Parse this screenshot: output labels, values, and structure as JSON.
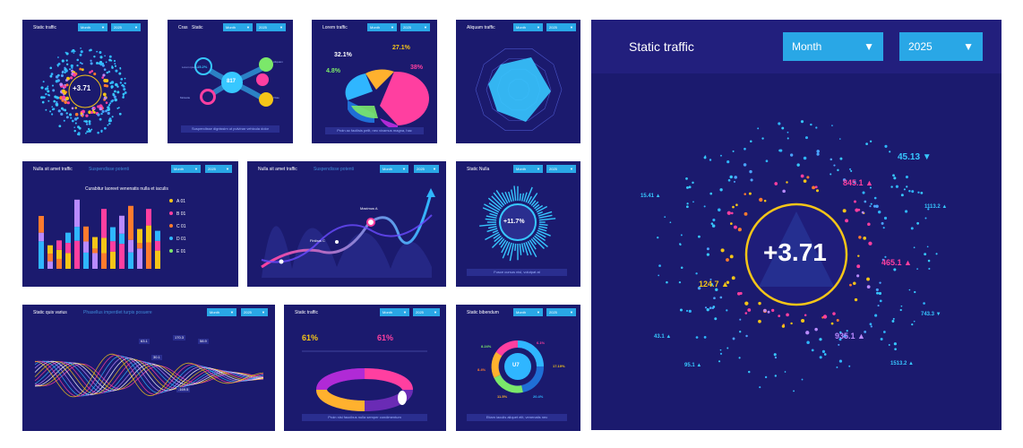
{
  "panels": {
    "p1": {
      "title": "Static traffic",
      "dd1": "Month",
      "dd2": "2025",
      "value": "+3.71"
    },
    "p2": {
      "title": "Cras",
      "subtitle": "Static",
      "dd1": "Month",
      "dd2": "2025",
      "center": "817",
      "node_pct": "15.2%",
      "note": "Suspendisse dignissim ut pulvinar vehicula dolor"
    },
    "p3": {
      "title": "Lorem traffic",
      "dd1": "Month",
      "dd2": "2025",
      "v1": "32.1%",
      "v2": "27.1%",
      "v3": "4.8%",
      "v4": "38%",
      "note": "Proin ac facilisis pellt, nec vivamus magna, hac"
    },
    "p4": {
      "title": "Aliquam traffic",
      "dd1": "Month",
      "dd2": "2025"
    },
    "p5": {
      "title": "Nulla sit amet traffic",
      "subtitle": "Suspendisse potenti",
      "dd1": "Month",
      "dd2": "2025",
      "chart_title": "Curabitur laoreet venenatis nulla et iaculis",
      "legend": [
        {
          "label": "A 01",
          "color": "#f5c518"
        },
        {
          "label": "B 01",
          "color": "#ff3fa0"
        },
        {
          "label": "C 01",
          "color": "#ff7b2e"
        },
        {
          "label": "D 01",
          "color": "#2fb6ff"
        },
        {
          "label": "E 01",
          "color": "#7be86a"
        }
      ]
    },
    "p6": {
      "title": "Nulla sit amet traffic",
      "subtitle": "Suspendisse potenti",
      "dd1": "Month",
      "dd2": "2025",
      "max_label": "Maximus A",
      "min_label": "Finibus C"
    },
    "p7": {
      "title": "Static Nulla",
      "dd1": "Month",
      "dd2": "2025",
      "value": "+11.7%",
      "note": "Fusce cursus nisl, volutpat at"
    },
    "p8": {
      "title": "Static quis varius",
      "subtitle": "Phasellus imperdiet turpis posuere",
      "dd1": "Month",
      "dd2": "2025",
      "tags": [
        "170.3",
        "63.1",
        "58.9",
        "30.1",
        "-169.5"
      ]
    },
    "p9": {
      "title": "Static traffic",
      "dd1": "Month",
      "dd2": "2025",
      "v1": "61%",
      "v2": "61%",
      "note": "Proin nisi faucibus nulla semper condimentum"
    },
    "p10": {
      "title": "Static bibendum",
      "dd1": "Month",
      "dd2": "2025",
      "center": "U7",
      "labels": [
        "8.24%",
        "6.1%",
        "17.19%",
        "8.4%",
        "11.5%",
        "20.4%"
      ],
      "note": "Etiam iaculis aliquet elit, venenatis nec"
    }
  },
  "main": {
    "title": "Static traffic",
    "dropdown_month": "Month",
    "dropdown_year": "2025",
    "value": "+3.71",
    "labels": [
      {
        "text": "45.13",
        "color": "#37c7ff",
        "arrow": "▼"
      },
      {
        "text": "15.41",
        "color": "#37c7ff",
        "arrow": "▲"
      },
      {
        "text": "845.1",
        "color": "#ff3fa0",
        "arrow": "▲"
      },
      {
        "text": "1113.2",
        "color": "#37c7ff",
        "arrow": "▲"
      },
      {
        "text": "465.1",
        "color": "#ff3fa0",
        "arrow": "▲"
      },
      {
        "text": "124.7",
        "color": "#f5c518",
        "arrow": "▲"
      },
      {
        "text": "743.3",
        "color": "#37c7ff",
        "arrow": "▼"
      },
      {
        "text": "935.1",
        "color": "#b98aff",
        "arrow": "▲"
      },
      {
        "text": "43.1",
        "color": "#37c7ff",
        "arrow": "▲"
      },
      {
        "text": "95.1",
        "color": "#37c7ff",
        "arrow": "▲"
      },
      {
        "text": "1513.2",
        "color": "#37c7ff",
        "arrow": "▲"
      }
    ]
  },
  "colors": {
    "panel": "#1b1a6e",
    "accent": "#29a7e6",
    "pink": "#ff3fa0",
    "yellow": "#f5c518",
    "cyan": "#37c7ff"
  }
}
